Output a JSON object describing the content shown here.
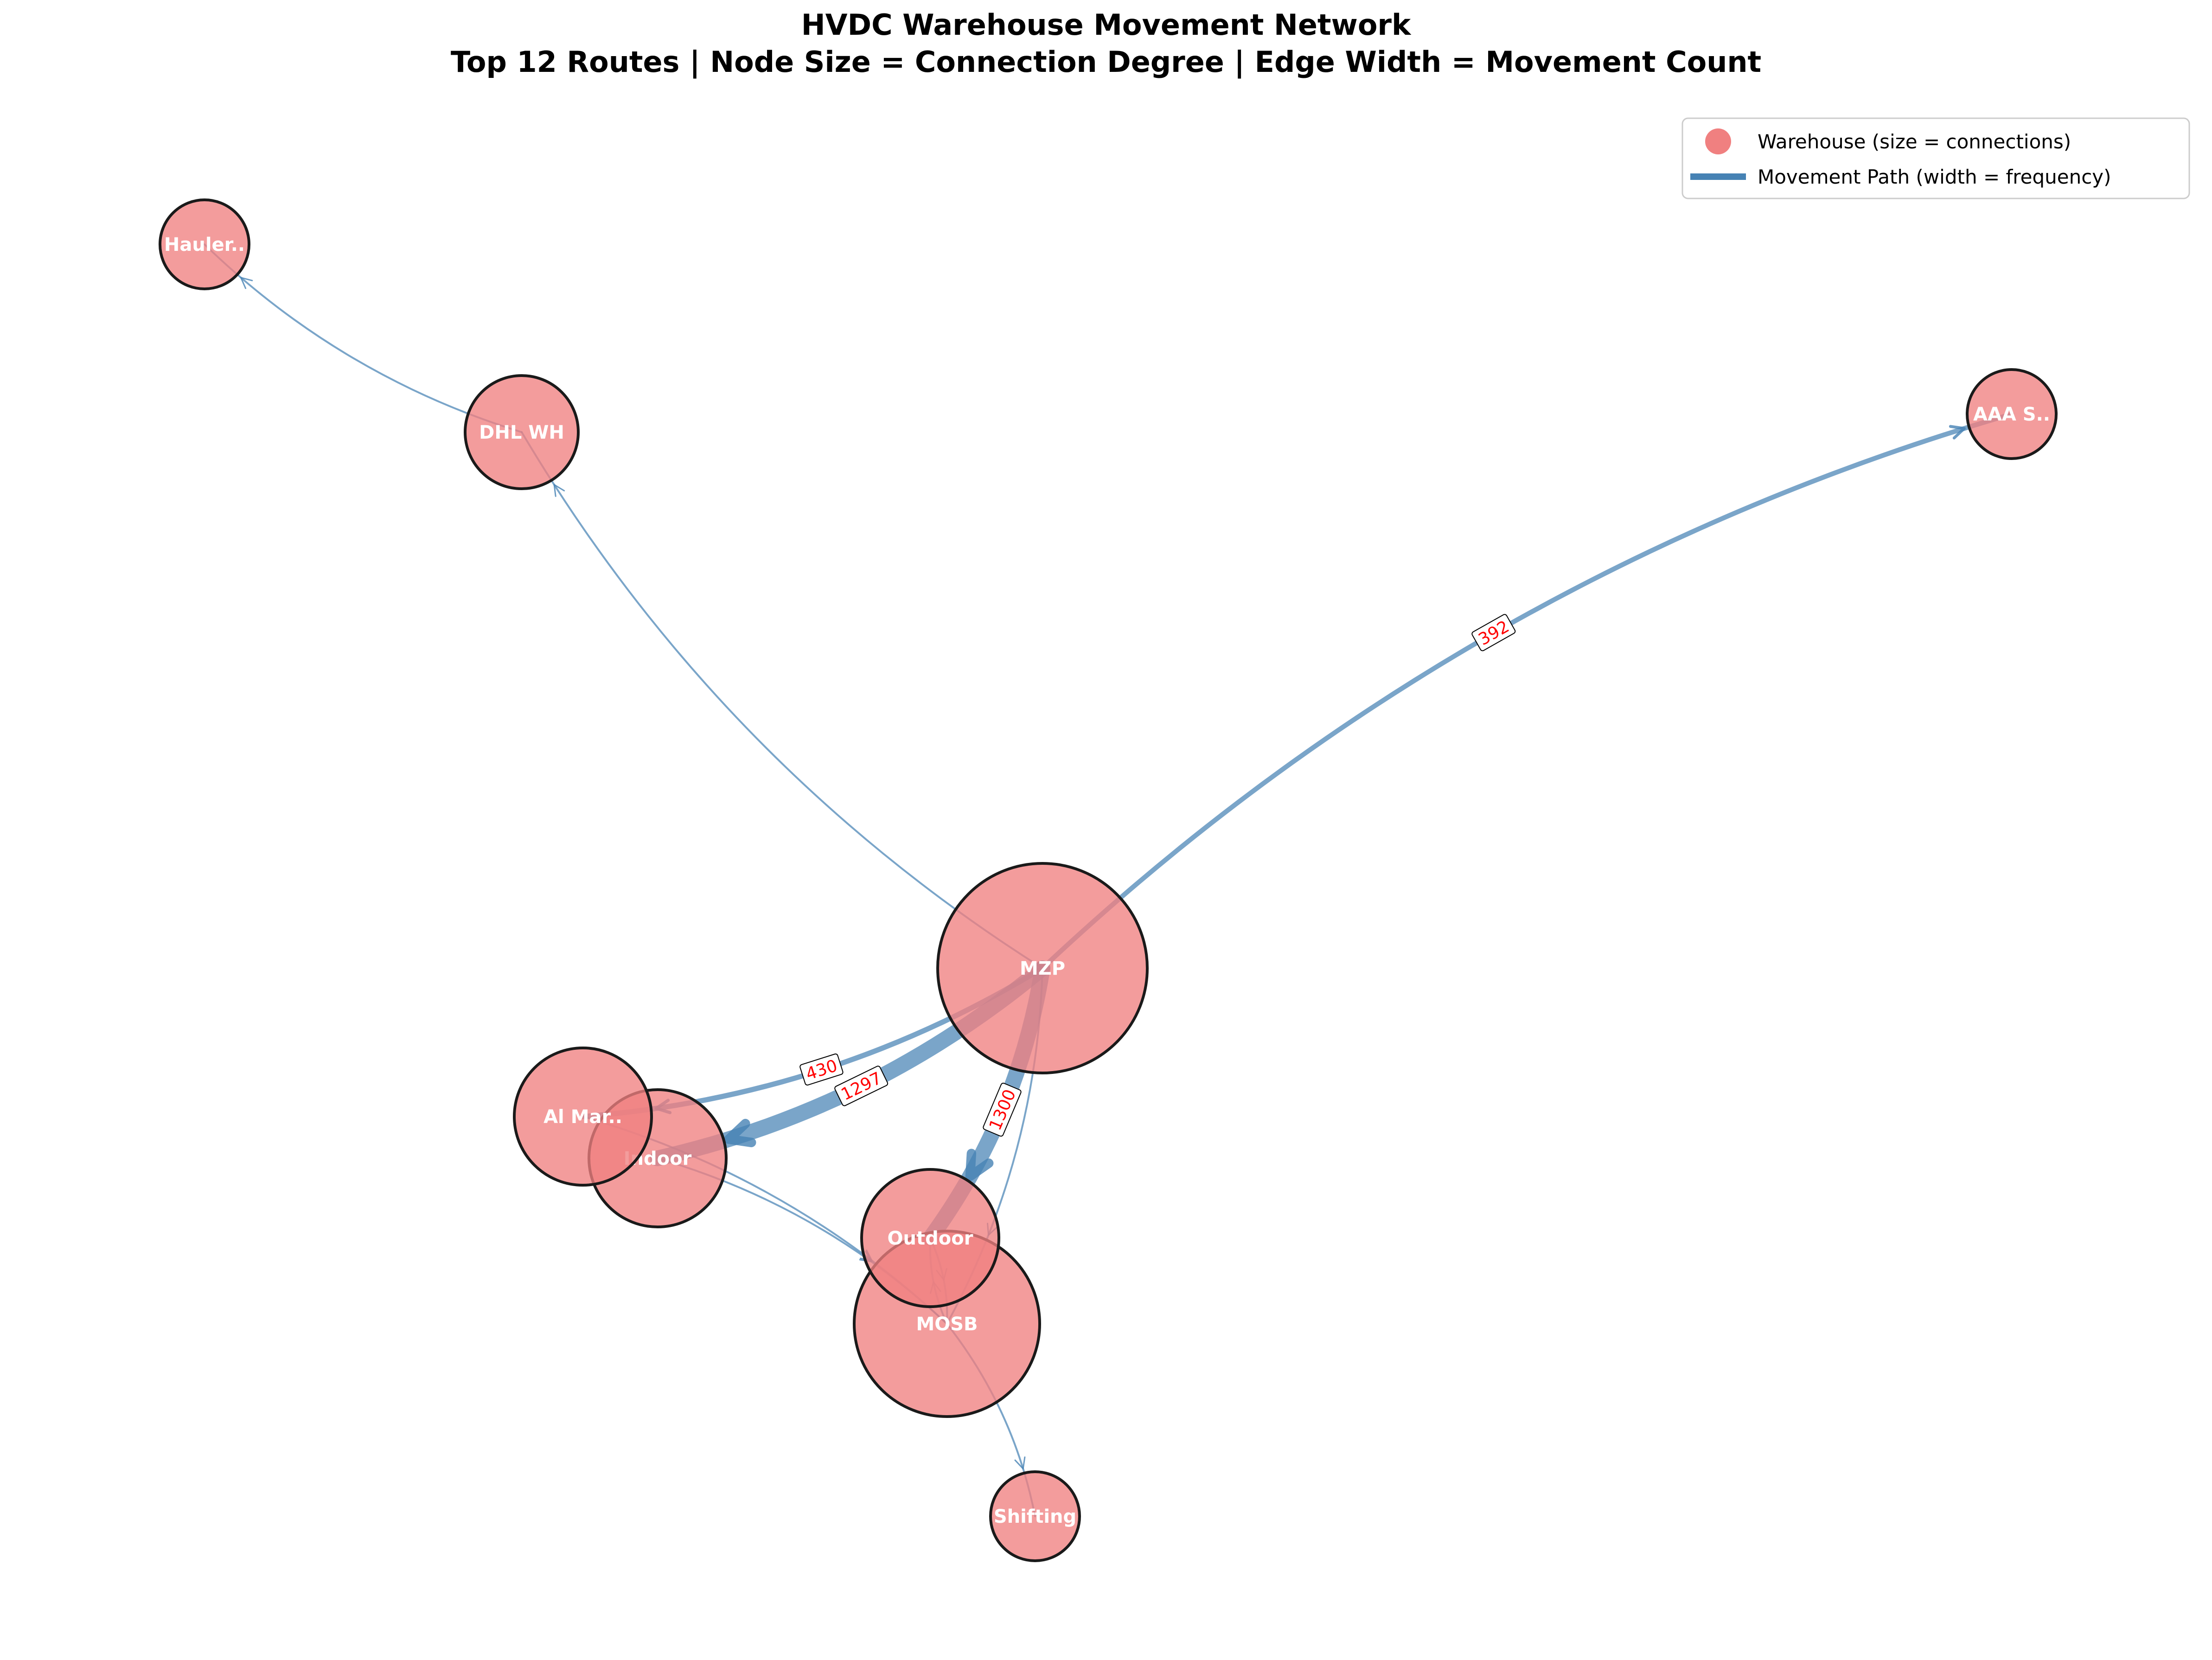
{
  "title": {
    "line1": "HVDC Warehouse Movement Network",
    "line2": "Top 12 Routes | Node Size = Connection Degree | Edge Width = Movement Count"
  },
  "legend": {
    "node_label": "Warehouse (size = connections)",
    "edge_label": "Movement Path (width = frequency)"
  },
  "colors": {
    "node_fill": "#f08080",
    "node_stroke": "#1a1a1a",
    "edge": "#4682b4",
    "edge_label_text": "#ff0000"
  },
  "nodes": [
    {
      "id": "mzp",
      "label": "MZP",
      "degree": 6
    },
    {
      "id": "mosb",
      "label": "MOSB",
      "degree": 5
    },
    {
      "id": "indoor",
      "label": "Indoor",
      "degree": 3
    },
    {
      "id": "outdoor",
      "label": "Outdoor",
      "degree": 3
    },
    {
      "id": "almar",
      "label": "Al Mar..",
      "degree": 3
    },
    {
      "id": "dhl",
      "label": "DHL WH",
      "degree": 2
    },
    {
      "id": "aaa",
      "label": "AAA  S..",
      "degree": 1
    },
    {
      "id": "hauler",
      "label": "Hauler..",
      "degree": 1
    },
    {
      "id": "shifting",
      "label": "Shifting",
      "degree": 1
    }
  ],
  "edges": [
    {
      "from": "mzp",
      "to": "indoor",
      "count": 1297,
      "label": "1297"
    },
    {
      "from": "mzp",
      "to": "outdoor",
      "count": 1300,
      "label": "1300"
    },
    {
      "from": "mzp",
      "to": "almar",
      "count": 430,
      "label": "430"
    },
    {
      "from": "mzp",
      "to": "aaa",
      "count": 392,
      "label": "392"
    },
    {
      "from": "mzp",
      "to": "dhl",
      "count": 100
    },
    {
      "from": "mzp",
      "to": "mosb",
      "count": 100
    },
    {
      "from": "dhl",
      "to": "hauler",
      "count": 60
    },
    {
      "from": "almar",
      "to": "mosb",
      "count": 60
    },
    {
      "from": "indoor",
      "to": "mosb",
      "count": 60
    },
    {
      "from": "outdoor",
      "to": "mosb",
      "count": 60
    },
    {
      "from": "mosb",
      "to": "outdoor",
      "count": 60
    },
    {
      "from": "mosb",
      "to": "shifting",
      "count": 60
    }
  ]
}
